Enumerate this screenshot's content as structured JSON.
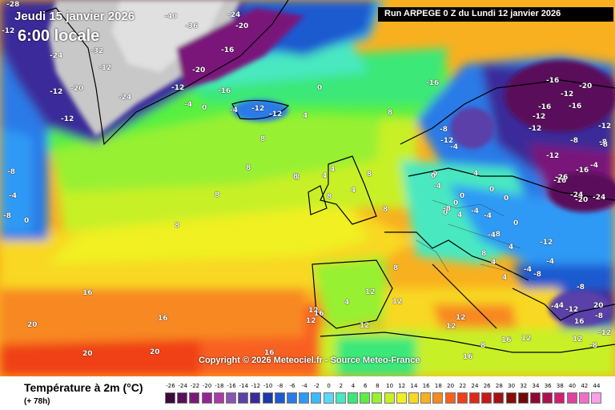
{
  "header": {
    "valid_date": "Jeudi 15 janvier 2026",
    "valid_hour": "6:00 locale",
    "run_info": "Run ARPEGE 0 Z du Lundi 12 janvier 2026",
    "copyright": "Copyright © 2026 Meteociel.fr - Source Meteo-France"
  },
  "legend": {
    "title": "Température à 2m (°C)",
    "lead_time": "(+ 78h)",
    "scale": [
      {
        "value": "-26",
        "color": "#3a0a3a"
      },
      {
        "value": "-24",
        "color": "#5a0f5a"
      },
      {
        "value": "-22",
        "color": "#7a187a"
      },
      {
        "value": "-20",
        "color": "#952595"
      },
      {
        "value": "-18",
        "color": "#a93aa9"
      },
      {
        "value": "-16",
        "color": "#8a55b5"
      },
      {
        "value": "-14",
        "color": "#5a40a8"
      },
      {
        "value": "-12",
        "color": "#3a2a9a"
      },
      {
        "value": "-10",
        "color": "#1a3aa8"
      },
      {
        "value": "-8",
        "color": "#1f5ad0"
      },
      {
        "value": "-6",
        "color": "#2a7ae8"
      },
      {
        "value": "-4",
        "color": "#2f9af5"
      },
      {
        "value": "-2",
        "color": "#3abaf8"
      },
      {
        "value": "0",
        "color": "#5ad8f8"
      },
      {
        "value": "2",
        "color": "#48e8c0"
      },
      {
        "value": "4",
        "color": "#3ae878"
      },
      {
        "value": "6",
        "color": "#58f040"
      },
      {
        "value": "8",
        "color": "#98f030"
      },
      {
        "value": "10",
        "color": "#c8f028"
      },
      {
        "value": "12",
        "color": "#f0f020"
      },
      {
        "value": "14",
        "color": "#f8d820"
      },
      {
        "value": "16",
        "color": "#f8b020"
      },
      {
        "value": "18",
        "color": "#f88820"
      },
      {
        "value": "20",
        "color": "#f86020"
      },
      {
        "value": "22",
        "color": "#f04018"
      },
      {
        "value": "24",
        "color": "#e02818"
      },
      {
        "value": "26",
        "color": "#c81818"
      },
      {
        "value": "28",
        "color": "#a81010"
      },
      {
        "value": "30",
        "color": "#880a0a"
      },
      {
        "value": "32",
        "color": "#700808"
      },
      {
        "value": "34",
        "color": "#900830"
      },
      {
        "value": "36",
        "color": "#b01050"
      },
      {
        "value": "38",
        "color": "#d02070"
      },
      {
        "value": "40",
        "color": "#e040a0"
      },
      {
        "value": "42",
        "color": "#f070c8"
      },
      {
        "value": "44",
        "color": "#f8a0e8"
      }
    ]
  },
  "map_labels": [
    {
      "t": "-28"
    },
    {
      "t": "-12"
    },
    {
      "t": "-24"
    },
    {
      "t": "-32"
    },
    {
      "t": "-12"
    },
    {
      "t": "-20"
    },
    {
      "t": "-12"
    },
    {
      "t": "-12"
    },
    {
      "t": "-8"
    },
    {
      "t": "-4"
    },
    {
      "t": "-8"
    },
    {
      "t": "0"
    },
    {
      "t": "-40"
    },
    {
      "t": "-36"
    },
    {
      "t": "-24"
    },
    {
      "t": "-20"
    },
    {
      "t": "-16"
    },
    {
      "t": "-20"
    },
    {
      "t": "-16"
    },
    {
      "t": "-24"
    },
    {
      "t": "-12"
    },
    {
      "t": "-4"
    },
    {
      "t": "0"
    },
    {
      "t": "-4"
    },
    {
      "t": "-12"
    },
    {
      "t": "-12"
    },
    {
      "t": "4"
    },
    {
      "t": "0"
    },
    {
      "t": "8"
    },
    {
      "t": "8"
    },
    {
      "t": "8"
    },
    {
      "t": "8"
    },
    {
      "t": "8"
    },
    {
      "t": "8"
    },
    {
      "t": "8"
    },
    {
      "t": "8"
    },
    {
      "t": "8"
    },
    {
      "t": "12"
    },
    {
      "t": "16"
    },
    {
      "t": "16"
    },
    {
      "t": "20"
    },
    {
      "t": "20"
    },
    {
      "t": "20"
    },
    {
      "t": "16"
    },
    {
      "t": "16"
    },
    {
      "t": "12"
    },
    {
      "t": "8"
    },
    {
      "t": "4"
    },
    {
      "t": "4"
    },
    {
      "t": "4"
    },
    {
      "t": "0"
    },
    {
      "t": "0"
    },
    {
      "t": "-4"
    },
    {
      "t": "-4"
    },
    {
      "t": "-8"
    },
    {
      "t": "-12"
    },
    {
      "t": "-16"
    },
    {
      "t": "-16"
    },
    {
      "t": "-12"
    },
    {
      "t": "-8"
    },
    {
      "t": "-12"
    },
    {
      "t": "-16"
    },
    {
      "t": "-26"
    },
    {
      "t": "-24"
    },
    {
      "t": "-24"
    },
    {
      "t": "-20"
    },
    {
      "t": "-16"
    },
    {
      "t": "-12"
    },
    {
      "t": "-8"
    },
    {
      "t": "-4"
    },
    {
      "t": "-4"
    },
    {
      "t": "0"
    },
    {
      "t": "4"
    },
    {
      "t": "4"
    },
    {
      "t": "4"
    },
    {
      "t": "-4"
    },
    {
      "t": "-8"
    },
    {
      "t": "-12"
    },
    {
      "t": "-8"
    },
    {
      "t": "-4"
    },
    {
      "t": "0"
    },
    {
      "t": "0"
    },
    {
      "t": "4"
    },
    {
      "t": "8"
    },
    {
      "t": "12"
    },
    {
      "t": "12"
    },
    {
      "t": "16"
    },
    {
      "t": "12"
    },
    {
      "t": "12"
    },
    {
      "t": "16"
    },
    {
      "t": "12"
    },
    {
      "t": "8"
    },
    {
      "t": "12"
    },
    {
      "t": "16"
    },
    {
      "t": "20"
    },
    {
      "t": "-4"
    },
    {
      "t": "-8"
    },
    {
      "t": "-12"
    },
    {
      "t": "-8"
    },
    {
      "t": "-12"
    },
    {
      "t": "4"
    },
    {
      "t": "0"
    },
    {
      "t": "0"
    },
    {
      "t": "-8"
    },
    {
      "t": "-12"
    },
    {
      "t": "-16"
    },
    {
      "t": "-20"
    },
    {
      "t": "-16"
    },
    {
      "t": "-12"
    },
    {
      "t": "-8"
    },
    {
      "t": "-4"
    },
    {
      "t": "4"
    },
    {
      "t": "12"
    },
    {
      "t": "8"
    },
    {
      "t": "0"
    },
    {
      "t": "-4"
    },
    {
      "t": "-8"
    },
    {
      "t": "-4"
    }
  ]
}
